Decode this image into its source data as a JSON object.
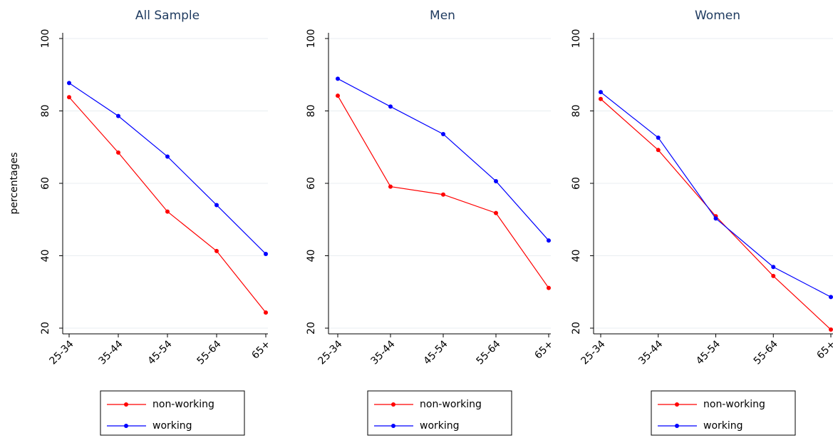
{
  "chart_data": [
    {
      "type": "line",
      "title": "All Sample",
      "y_label": "percentages",
      "categories": [
        "25-34",
        "35-44",
        "45-54",
        "55-64",
        "65+"
      ],
      "series": [
        {
          "name": "non-working",
          "color": "#ff0000",
          "values": [
            83.8,
            68.5,
            52.2,
            41.3,
            24.3
          ]
        },
        {
          "name": "working",
          "color": "#0000ff",
          "values": [
            87.7,
            78.6,
            67.4,
            54.0,
            40.5
          ]
        }
      ],
      "ylim": [
        20,
        100
      ],
      "yticks": [
        20,
        40,
        60,
        80,
        100
      ],
      "grid": true
    },
    {
      "type": "line",
      "title": "Men",
      "categories": [
        "25-34",
        "35-44",
        "45-54",
        "55-64",
        "65+"
      ],
      "series": [
        {
          "name": "non-working",
          "color": "#ff0000",
          "values": [
            84.2,
            59.1,
            56.9,
            51.8,
            31.1
          ]
        },
        {
          "name": "working",
          "color": "#0000ff",
          "values": [
            88.9,
            81.2,
            73.6,
            60.6,
            44.2
          ]
        }
      ],
      "ylim": [
        20,
        100
      ],
      "yticks": [
        20,
        40,
        60,
        80,
        100
      ],
      "grid": true
    },
    {
      "type": "line",
      "title": "Women",
      "categories": [
        "25-34",
        "35-44",
        "45-54",
        "55-64",
        "65+"
      ],
      "series": [
        {
          "name": "non-working",
          "color": "#ff0000",
          "values": [
            83.3,
            69.2,
            50.9,
            34.4,
            19.6
          ]
        },
        {
          "name": "working",
          "color": "#0000ff",
          "values": [
            85.2,
            72.6,
            50.3,
            36.9,
            28.6
          ]
        }
      ],
      "ylim": [
        20,
        100
      ],
      "yticks": [
        20,
        40,
        60,
        80,
        100
      ],
      "grid": true
    }
  ]
}
